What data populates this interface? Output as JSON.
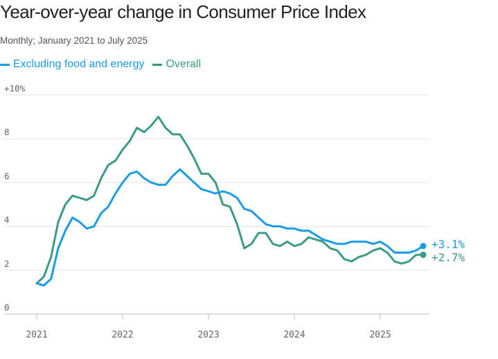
{
  "chart_data": {
    "type": "line",
    "title": "Year-over-year change in Consumer Price Index",
    "subtitle": "Monthly; January 2021 to July 2025",
    "x_start": "2021-01",
    "x_end": "2025-07",
    "x_ticks": [
      "2021",
      "2022",
      "2023",
      "2024",
      "2025"
    ],
    "x_tick_months": [
      "2021-01",
      "2022-01",
      "2023-01",
      "2024-01",
      "2025-01"
    ],
    "y_ticks": [
      "+10%",
      "8",
      "6",
      "4",
      "2",
      "0"
    ],
    "y_tick_values": [
      10,
      8,
      6,
      4,
      2,
      0
    ],
    "ylim": [
      0,
      10
    ],
    "grid": true,
    "legend_position": "top-left",
    "series": [
      {
        "name": "Excluding food and energy",
        "color": "#1a9be6",
        "end_label": "+3.1%",
        "values": [
          1.4,
          1.3,
          1.6,
          3.0,
          3.8,
          4.4,
          4.2,
          3.9,
          4.0,
          4.6,
          4.9,
          5.5,
          6.0,
          6.4,
          6.5,
          6.2,
          6.0,
          5.9,
          5.9,
          6.3,
          6.6,
          6.3,
          6.0,
          5.7,
          5.6,
          5.5,
          5.6,
          5.5,
          5.3,
          4.8,
          4.7,
          4.4,
          4.1,
          4.0,
          4.0,
          3.9,
          3.9,
          3.8,
          3.8,
          3.6,
          3.4,
          3.3,
          3.2,
          3.2,
          3.3,
          3.3,
          3.3,
          3.2,
          3.3,
          3.1,
          2.8,
          2.8,
          2.8,
          2.9,
          3.1
        ]
      },
      {
        "name": "Overall",
        "color": "#3a9a86",
        "end_label": "+2.7%",
        "values": [
          1.4,
          1.7,
          2.6,
          4.2,
          5.0,
          5.4,
          5.3,
          5.2,
          5.4,
          6.2,
          6.8,
          7.0,
          7.5,
          7.9,
          8.5,
          8.3,
          8.6,
          9.0,
          8.5,
          8.2,
          8.2,
          7.7,
          7.1,
          6.4,
          6.4,
          6.0,
          5.0,
          4.9,
          4.1,
          3.0,
          3.2,
          3.7,
          3.7,
          3.2,
          3.1,
          3.3,
          3.1,
          3.2,
          3.5,
          3.4,
          3.3,
          3.0,
          2.9,
          2.5,
          2.4,
          2.6,
          2.7,
          2.9,
          3.0,
          2.8,
          2.4,
          2.3,
          2.4,
          2.7,
          2.7
        ]
      }
    ]
  }
}
